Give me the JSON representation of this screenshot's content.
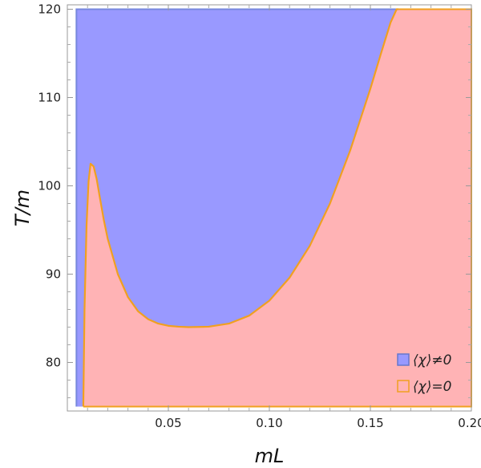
{
  "chart_data": {
    "type": "area",
    "xlabel": "mL",
    "ylabel": "T/m",
    "xlim": [
      0.0,
      0.2
    ],
    "ylim": [
      74.5,
      120.5
    ],
    "x_ticks": [
      0.05,
      0.1,
      0.15,
      0.2
    ],
    "x_tick_labels": [
      "0.05",
      "0.10",
      "0.15",
      "0.20"
    ],
    "y_ticks": [
      80,
      90,
      100,
      110,
      120
    ],
    "y_tick_labels": [
      "80",
      "90",
      "100",
      "110",
      "120"
    ],
    "grid": false,
    "legend_position": "bottom-right",
    "series": [
      {
        "name": "⟨χ⟩≠0",
        "fill_color": "#9999ff",
        "edge_color": "#7788dd",
        "region": "inside boundary (broken phase)"
      },
      {
        "name": "⟨χ⟩=0",
        "fill_color": "#ffb3b5",
        "edge_color": "#f0a020",
        "region": "outside boundary (symmetric phase)"
      }
    ],
    "boundary_curve": {
      "x": [
        0.0079,
        0.0085,
        0.0095,
        0.0105,
        0.0115,
        0.013,
        0.0145,
        0.016,
        0.018,
        0.02,
        0.025,
        0.03,
        0.035,
        0.04,
        0.045,
        0.05,
        0.055,
        0.06,
        0.065,
        0.07,
        0.08,
        0.09,
        0.1,
        0.11,
        0.12,
        0.13,
        0.14,
        0.15,
        0.155,
        0.16,
        0.163,
        0.164
      ],
      "y": [
        74.5,
        86.0,
        95.5,
        100.5,
        102.5,
        102.2,
        100.8,
        98.8,
        96.2,
        94.0,
        90.0,
        87.4,
        85.8,
        84.9,
        84.4,
        84.15,
        84.05,
        84.0,
        84.02,
        84.05,
        84.4,
        85.3,
        87.0,
        89.6,
        93.2,
        98.0,
        104.0,
        111.0,
        114.8,
        118.5,
        120.0,
        120.5
      ]
    },
    "left_boundary_x": 0.0045
  }
}
